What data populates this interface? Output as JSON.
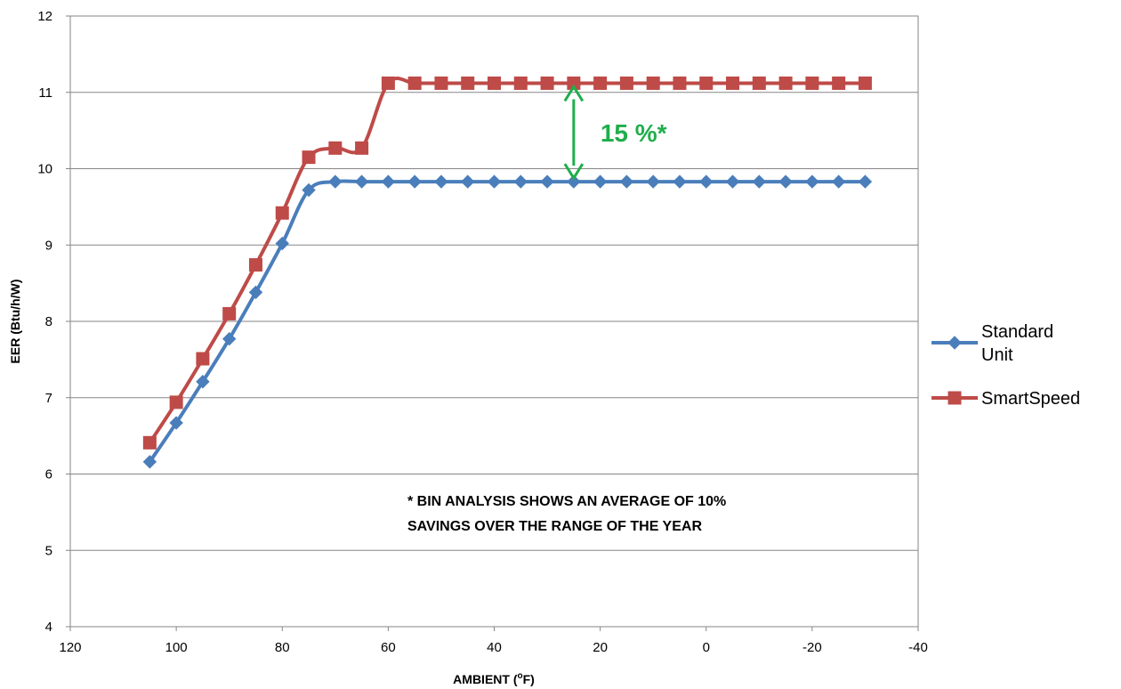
{
  "chart_data": {
    "type": "line",
    "xlabel": "AMBIENT (",
    "xlabel_sup": "o",
    "xlabel_tail": "F)",
    "ylabel": "EER (Btu/h/W)",
    "xlim": [
      120,
      -40
    ],
    "ylim": [
      4,
      12
    ],
    "x_ticks": [
      "120",
      "100",
      "80",
      "60",
      "40",
      "20",
      "0",
      "-20",
      "-40"
    ],
    "y_ticks": [
      "4",
      "5",
      "6",
      "7",
      "8",
      "9",
      "10",
      "11",
      "12"
    ],
    "grid": "horizontal",
    "legend": "right",
    "x": [
      105,
      100,
      95,
      90,
      85,
      80,
      75,
      70,
      65,
      60,
      55,
      50,
      45,
      40,
      35,
      30,
      25,
      20,
      15,
      10,
      5,
      0,
      -5,
      -10,
      -15,
      -20,
      -25,
      -30
    ],
    "series": [
      {
        "name": "Standard Unit",
        "legend_lines": [
          "Standard",
          "Unit"
        ],
        "color": "#4a7ebb",
        "marker": "diamond",
        "values": [
          6.16,
          6.67,
          7.21,
          7.77,
          8.38,
          9.02,
          9.72,
          9.83,
          9.83,
          9.83,
          9.83,
          9.83,
          9.83,
          9.83,
          9.83,
          9.83,
          9.83,
          9.83,
          9.83,
          9.83,
          9.83,
          9.83,
          9.83,
          9.83,
          9.83,
          9.83,
          9.83,
          9.83
        ]
      },
      {
        "name": "SmartSpeed",
        "legend_lines": [
          "SmartSpeed"
        ],
        "color": "#be4b48",
        "marker": "square",
        "values": [
          6.41,
          6.94,
          7.51,
          8.1,
          8.74,
          9.42,
          10.15,
          10.27,
          10.27,
          11.12,
          11.12,
          11.12,
          11.12,
          11.12,
          11.12,
          11.12,
          11.12,
          11.12,
          11.12,
          11.12,
          11.12,
          11.12,
          11.12,
          11.12,
          11.12,
          11.12,
          11.12,
          11.12
        ]
      }
    ],
    "annotations": {
      "callout_text": "15 %*",
      "callout_color": "#1fae4b",
      "arrow_x": 25,
      "arrow_from": 9.83,
      "arrow_to": 11.12,
      "note_line1": "* BIN ANALYSIS SHOWS AN AVERAGE OF 10%",
      "note_line2": "SAVINGS OVER THE RANGE OF THE YEAR"
    }
  }
}
